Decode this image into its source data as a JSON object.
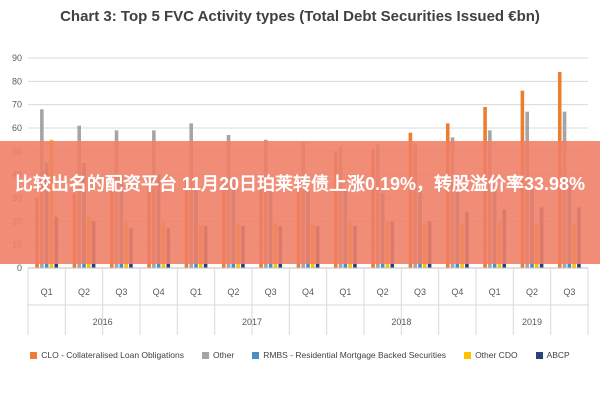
{
  "banner": {
    "text": "比较出名的配资平台 11月20日珀莱转债上涨0.19%，转股溢价率33.98%"
  },
  "chart_data": {
    "type": "bar",
    "title": "Chart 3: Top 5 FVC Activity types (Total Debt Securities Issued €bn)",
    "ylim": [
      0,
      90
    ],
    "yticks": [
      "0",
      "10",
      "20",
      "30",
      "40",
      "50",
      "60",
      "70",
      "80",
      "90"
    ],
    "grid": true,
    "legend_position": "bottom",
    "categories": [
      "Q1",
      "Q2",
      "Q3",
      "Q4",
      "Q1",
      "Q2",
      "Q3",
      "Q4",
      "Q1",
      "Q2",
      "Q3",
      "Q4",
      "Q1",
      "Q2",
      "Q3"
    ],
    "years": [
      {
        "label": "2016",
        "start": 0,
        "count": 4
      },
      {
        "label": "2017",
        "start": 4,
        "count": 4
      },
      {
        "label": "2018",
        "start": 8,
        "count": 4
      },
      {
        "label": "2019",
        "start": 12,
        "count": 3
      }
    ],
    "series": [
      {
        "name": "CLO - Collateralised Loan Obligations",
        "color": "#ed7d31",
        "values": [
          30,
          32,
          34,
          35,
          38,
          37,
          40,
          40,
          50,
          51,
          58,
          62,
          69,
          76,
          84
        ]
      },
      {
        "name": "Other",
        "color": "#a5a5a5",
        "values": [
          68,
          61,
          59,
          59,
          62,
          57,
          55,
          54,
          52,
          53,
          53,
          56,
          59,
          67,
          67
        ]
      },
      {
        "name": "RMBS - Residential Mortgage Backed Securities",
        "color": "#4a8fc4",
        "values": [
          45,
          45,
          40,
          40,
          35,
          38,
          34,
          33,
          33,
          32,
          34,
          34,
          33,
          35,
          38
        ]
      },
      {
        "name": "Other CDO",
        "color": "#ffc000",
        "values": [
          55,
          22,
          20,
          20,
          18,
          19,
          19,
          19,
          20,
          20,
          19,
          19,
          20,
          19,
          19
        ]
      },
      {
        "name": "ABCP",
        "color": "#264478",
        "values": [
          22,
          20,
          17,
          17,
          18,
          18,
          18,
          18,
          18,
          20,
          20,
          24,
          25,
          26,
          26
        ]
      }
    ]
  }
}
